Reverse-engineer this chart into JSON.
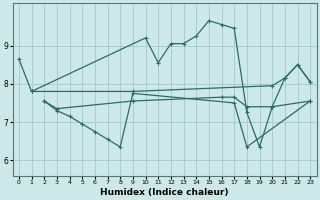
{
  "xlabel": "Humidex (Indice chaleur)",
  "background_color": "#cce8e8",
  "grid_color": "#aacccc",
  "line_color": "#2a6b6b",
  "xlim": [
    -0.5,
    23.5
  ],
  "ylim": [
    5.6,
    10.1
  ],
  "yticks": [
    6,
    7,
    8,
    9
  ],
  "xtick_labels": [
    "0",
    "1",
    "2",
    "3",
    "4",
    "5",
    "6",
    "7",
    "8",
    "9",
    "10",
    "11",
    "12",
    "13",
    "14",
    "15",
    "16",
    "17",
    "18",
    "19",
    "20",
    "21",
    "22",
    "23"
  ],
  "series1": [
    [
      0,
      8.65
    ],
    [
      1,
      7.8
    ],
    [
      10,
      9.2
    ],
    [
      11,
      8.55
    ],
    [
      12,
      9.05
    ],
    [
      13,
      9.05
    ],
    [
      14,
      9.25
    ],
    [
      15,
      9.65
    ],
    [
      16,
      9.55
    ],
    [
      17,
      9.45
    ],
    [
      18,
      7.25
    ],
    [
      19,
      6.35
    ],
    [
      20,
      7.4
    ],
    [
      21,
      8.15
    ],
    [
      22,
      8.5
    ],
    [
      23,
      8.05
    ]
  ],
  "series2": [
    [
      1,
      7.8
    ],
    [
      9,
      7.8
    ],
    [
      20,
      7.95
    ],
    [
      21,
      8.15
    ],
    [
      22,
      8.5
    ],
    [
      23,
      8.05
    ]
  ],
  "series3": [
    [
      2,
      7.55
    ],
    [
      3,
      7.35
    ],
    [
      9,
      7.55
    ],
    [
      16,
      7.65
    ],
    [
      17,
      7.65
    ],
    [
      18,
      7.4
    ],
    [
      20,
      7.4
    ],
    [
      23,
      7.55
    ]
  ],
  "series4": [
    [
      2,
      7.55
    ],
    [
      3,
      7.3
    ],
    [
      4,
      7.15
    ],
    [
      5,
      6.95
    ],
    [
      6,
      6.75
    ],
    [
      7,
      6.55
    ],
    [
      8,
      6.35
    ],
    [
      9,
      7.75
    ],
    [
      17,
      7.5
    ],
    [
      18,
      6.35
    ],
    [
      23,
      7.55
    ]
  ]
}
